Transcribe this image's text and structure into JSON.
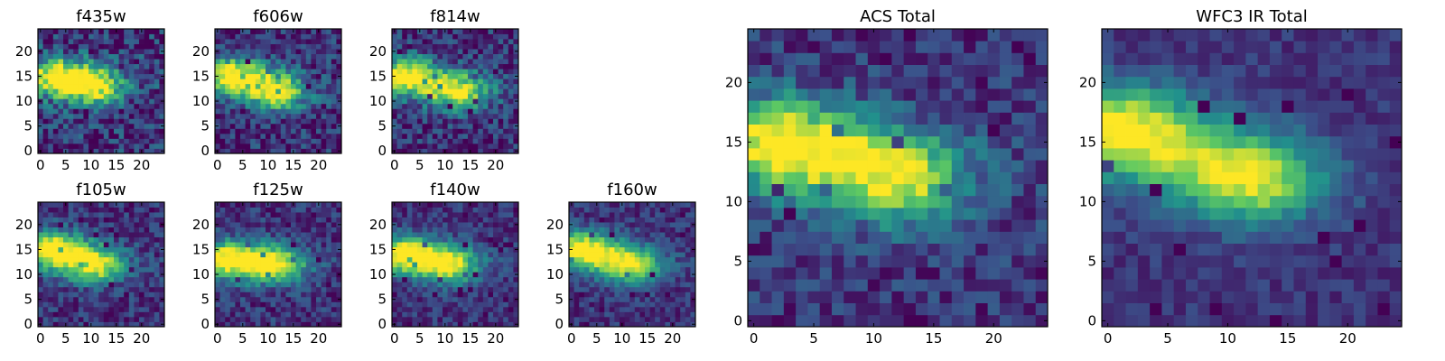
{
  "figure": {
    "colormap": [
      "#440154",
      "#3b528b",
      "#21918c",
      "#5ec962",
      "#fde725"
    ]
  },
  "chart_data": [
    {
      "type": "heatmap",
      "title": "f435w",
      "grid_size": 25,
      "xticks": [
        0,
        5,
        10,
        15,
        20
      ],
      "yticks": [
        0,
        5,
        10,
        15,
        20
      ],
      "xlim": [
        -0.5,
        24.5
      ],
      "ylim": [
        -0.5,
        24.5
      ],
      "blob_centers": [
        [
          3,
          15
        ],
        [
          11,
          13
        ]
      ],
      "noise": 0.55,
      "seed": 11
    },
    {
      "type": "heatmap",
      "title": "f606w",
      "grid_size": 25,
      "xticks": [
        0,
        5,
        10,
        15,
        20
      ],
      "yticks": [
        0,
        5,
        10,
        15,
        20
      ],
      "xlim": [
        -0.5,
        24.5
      ],
      "ylim": [
        -0.5,
        24.5
      ],
      "blob_centers": [
        [
          3,
          15
        ],
        [
          12,
          12
        ]
      ],
      "noise": 0.45,
      "seed": 23
    },
    {
      "type": "heatmap",
      "title": "f814w",
      "grid_size": 25,
      "xticks": [
        0,
        5,
        10,
        15,
        20
      ],
      "yticks": [
        0,
        5,
        10,
        15,
        20
      ],
      "xlim": [
        -0.5,
        24.5
      ],
      "ylim": [
        -0.5,
        24.5
      ],
      "blob_centers": [
        [
          2,
          15
        ],
        [
          13,
          12
        ]
      ],
      "noise": 0.45,
      "seed": 37
    },
    {
      "type": "heatmap",
      "title": "f105w",
      "grid_size": 25,
      "xticks": [
        0,
        5,
        10,
        15,
        20
      ],
      "yticks": [
        0,
        5,
        10,
        15,
        20
      ],
      "xlim": [
        -0.5,
        24.5
      ],
      "ylim": [
        -0.5,
        24.5
      ],
      "blob_centers": [
        [
          2,
          15
        ],
        [
          11,
          12
        ]
      ],
      "noise": 0.35,
      "seed": 41
    },
    {
      "type": "heatmap",
      "title": "f125w",
      "grid_size": 25,
      "xticks": [
        0,
        5,
        10,
        15,
        20
      ],
      "yticks": [
        0,
        5,
        10,
        15,
        20
      ],
      "xlim": [
        -0.5,
        24.5
      ],
      "ylim": [
        -0.5,
        24.5
      ],
      "blob_centers": [
        [
          2,
          13
        ],
        [
          12,
          12
        ]
      ],
      "noise": 0.35,
      "seed": 53
    },
    {
      "type": "heatmap",
      "title": "f140w",
      "grid_size": 25,
      "xticks": [
        0,
        5,
        10,
        15,
        20
      ],
      "yticks": [
        0,
        5,
        10,
        15,
        20
      ],
      "xlim": [
        -0.5,
        24.5
      ],
      "ylim": [
        -0.5,
        24.5
      ],
      "blob_centers": [
        [
          2,
          14
        ],
        [
          11,
          12
        ]
      ],
      "noise": 0.3,
      "seed": 67
    },
    {
      "type": "heatmap",
      "title": "f160w",
      "grid_size": 25,
      "xticks": [
        0,
        5,
        10,
        15,
        20
      ],
      "yticks": [
        0,
        5,
        10,
        15,
        20
      ],
      "xlim": [
        -0.5,
        24.5
      ],
      "ylim": [
        -0.5,
        24.5
      ],
      "blob_centers": [
        [
          2,
          15
        ],
        [
          12,
          12
        ]
      ],
      "noise": 0.3,
      "seed": 79
    },
    {
      "type": "heatmap",
      "title": "ACS Total",
      "grid_size": 25,
      "xticks": [
        0,
        5,
        10,
        15,
        20
      ],
      "yticks": [
        0,
        5,
        10,
        15,
        20
      ],
      "xlim": [
        -0.5,
        24.5
      ],
      "ylim": [
        -0.5,
        24.5
      ],
      "blob_centers": [
        [
          2,
          15
        ],
        [
          12,
          12
        ]
      ],
      "noise": 0.35,
      "seed": 97
    },
    {
      "type": "heatmap",
      "title": "WFC3 IR Total",
      "grid_size": 25,
      "xticks": [
        0,
        5,
        10,
        15,
        20
      ],
      "yticks": [
        0,
        5,
        10,
        15,
        20
      ],
      "xlim": [
        -0.5,
        24.5
      ],
      "ylim": [
        -0.5,
        24.5
      ],
      "blob_centers": [
        [
          1,
          16
        ],
        [
          12,
          12
        ]
      ],
      "noise": 0.2,
      "seed": 131
    }
  ]
}
